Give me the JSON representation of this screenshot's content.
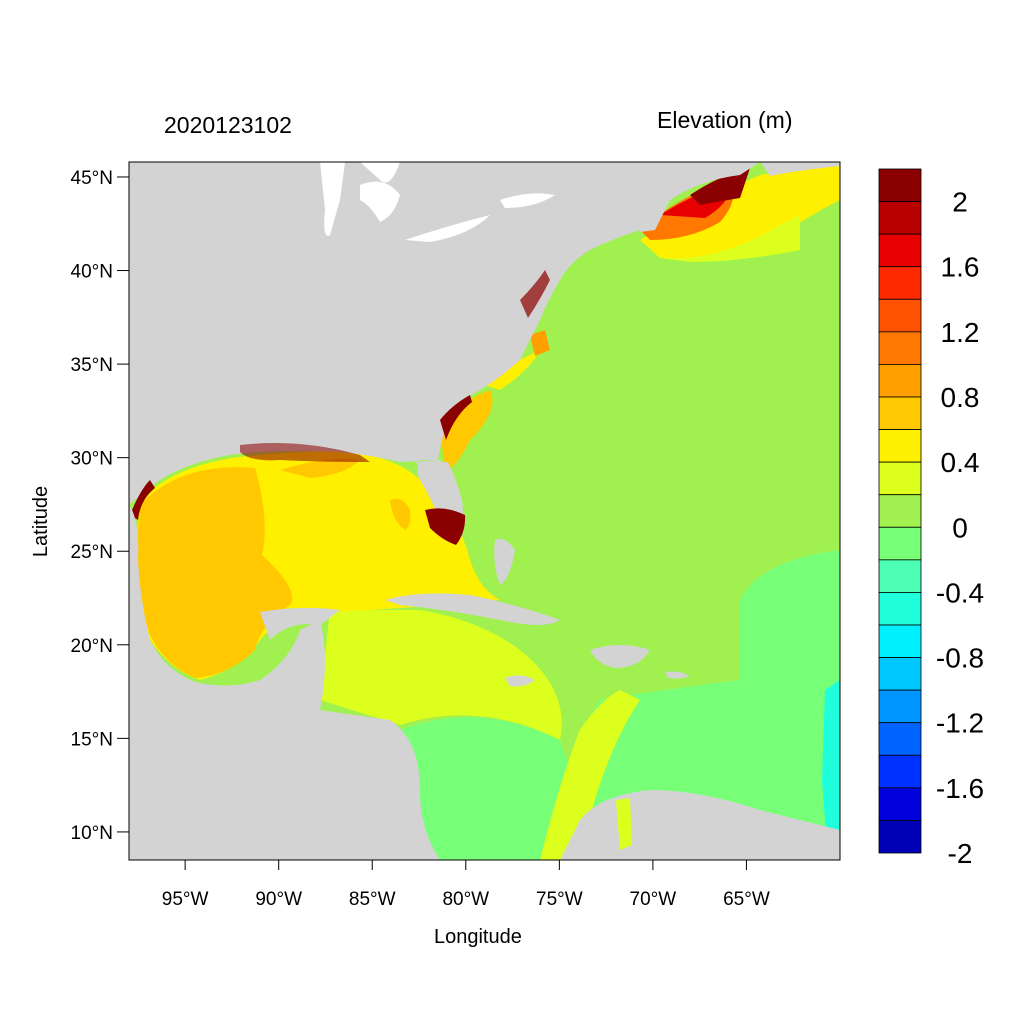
{
  "header": {
    "date_label": "2020123102",
    "variable_label": "Elevation (m)"
  },
  "axes": {
    "xlabel": "Longitude",
    "ylabel": "Latitude",
    "x_ticks": [
      "95°W",
      "90°W",
      "85°W",
      "80°W",
      "75°W",
      "70°W",
      "65°W"
    ],
    "y_ticks": [
      "45°N",
      "40°N",
      "35°N",
      "30°N",
      "25°N",
      "20°N",
      "15°N",
      "10°N"
    ],
    "lon_range": [
      -98.0,
      -60.0
    ],
    "lat_range": [
      8.5,
      45.8
    ]
  },
  "colorbar": {
    "labels": [
      "2",
      "1.6",
      "1.2",
      "0.8",
      "0.4",
      "0",
      "-0.4",
      "-0.8",
      "-1.2",
      "-1.6",
      "-2"
    ],
    "colors": [
      "#8b0000",
      "#b90000",
      "#e80000",
      "#ff2a00",
      "#ff5200",
      "#ff7800",
      "#ffa000",
      "#ffc800",
      "#fff000",
      "#dcff1e",
      "#a0f050",
      "#78ff78",
      "#4cffb4",
      "#20ffdc",
      "#00f0ff",
      "#00c8ff",
      "#0096ff",
      "#0064ff",
      "#0032ff",
      "#0000dc",
      "#0000b4"
    ]
  },
  "colors": {
    "land": "#d3d3d3",
    "ocean_default": "#a0f050",
    "gulf": "#ffc800",
    "coast_positive": "#8b0000"
  }
}
